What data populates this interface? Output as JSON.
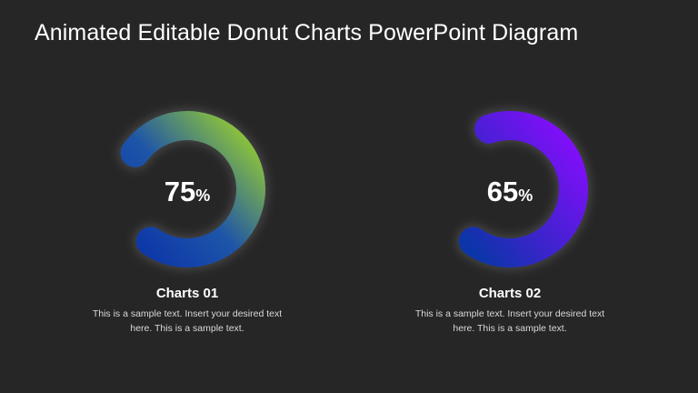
{
  "slide": {
    "title": "Animated Editable Donut Charts PowerPoint Diagram"
  },
  "charts": [
    {
      "percent_value": "75",
      "percent_unit": "%",
      "fraction": 0.75,
      "name": "Charts 01",
      "description": "This is a sample text. Insert your desired text here. This is a sample text.",
      "colors": {
        "start": "#0b35a8",
        "end": "#9ad12e"
      }
    },
    {
      "percent_value": "65",
      "percent_unit": "%",
      "fraction": 0.65,
      "name": "Charts 02",
      "description": "This is a sample text. Insert your desired text here. This is a sample text.",
      "colors": {
        "start": "#0b35a8",
        "end": "#8a0cff"
      }
    }
  ]
}
